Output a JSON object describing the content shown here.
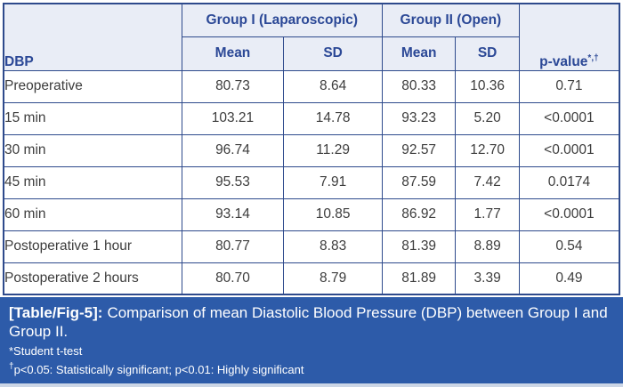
{
  "colors": {
    "border": "#2e4a8c",
    "header_bg": "#e9edf6",
    "header_text": "#2b4896",
    "body_text": "#3d3d3d",
    "footer_bg": "#2d5ba9",
    "footer_text": "#ffffff",
    "bottom_strip": "#ccd6e6"
  },
  "table": {
    "row_header": "DBP",
    "group1_header": "Group I (Laparoscopic)",
    "group2_header": "Group II (Open)",
    "mean_header": "Mean",
    "sd_header": "SD",
    "pvalue_header": "p-value",
    "pvalue_sup": "*,†",
    "rows": [
      {
        "label": "Preoperative",
        "g1_mean": "80.73",
        "g1_sd": "8.64",
        "g2_mean": "80.33",
        "g2_sd": "10.36",
        "p": "0.71"
      },
      {
        "label": "15 min",
        "g1_mean": "103.21",
        "g1_sd": "14.78",
        "g2_mean": "93.23",
        "g2_sd": "5.20",
        "p": "<0.0001"
      },
      {
        "label": "30 min",
        "g1_mean": "96.74",
        "g1_sd": "11.29",
        "g2_mean": "92.57",
        "g2_sd": "12.70",
        "p": "<0.0001"
      },
      {
        "label": "45 min",
        "g1_mean": "95.53",
        "g1_sd": "7.91",
        "g2_mean": "87.59",
        "g2_sd": "7.42",
        "p": "0.0174"
      },
      {
        "label": "60 min",
        "g1_mean": "93.14",
        "g1_sd": "10.85",
        "g2_mean": "86.92",
        "g2_sd": "1.77",
        "p": "<0.0001"
      },
      {
        "label": "Postoperative 1 hour",
        "g1_mean": "80.77",
        "g1_sd": "8.83",
        "g2_mean": "81.39",
        "g2_sd": "8.89",
        "p": "0.54"
      },
      {
        "label": "Postoperative 2 hours",
        "g1_mean": "80.70",
        "g1_sd": "8.79",
        "g2_mean": "81.89",
        "g2_sd": "3.39",
        "p": "0.49"
      }
    ]
  },
  "caption": {
    "tag": "[Table/Fig-5]:",
    "text": "Comparison of mean Diastolic Blood Pressure (DBP) between Group I and Group II."
  },
  "footnotes": {
    "note1": "*Student t-test",
    "note2_sup": "†",
    "note2": "p<0.05: Statistically significant; p<0.01: Highly significant"
  }
}
